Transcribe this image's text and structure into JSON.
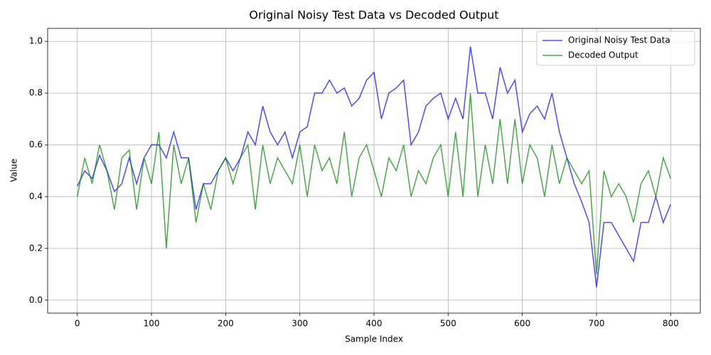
{
  "chart_data": {
    "type": "line",
    "title": "Original Noisy Test Data vs Decoded Output",
    "x_label": "Sample Index",
    "y_label": "Value",
    "x": [
      0,
      10,
      20,
      30,
      40,
      50,
      60,
      70,
      80,
      90,
      100,
      110,
      120,
      130,
      140,
      150,
      160,
      170,
      180,
      190,
      200,
      210,
      220,
      230,
      240,
      250,
      260,
      270,
      280,
      290,
      300,
      310,
      320,
      330,
      340,
      350,
      360,
      370,
      380,
      390,
      400,
      410,
      420,
      430,
      440,
      450,
      460,
      470,
      480,
      490,
      500,
      510,
      520,
      530,
      540,
      550,
      560,
      570,
      580,
      590,
      600,
      610,
      620,
      630,
      640,
      650,
      660,
      670,
      680,
      690,
      700,
      710,
      720,
      730,
      740,
      750,
      760,
      770,
      780,
      790,
      800
    ],
    "series": [
      {
        "name": "Original Noisy Test Data",
        "color": "#0000ff",
        "values": [
          0.44,
          0.5,
          0.47,
          0.56,
          0.5,
          0.42,
          0.45,
          0.55,
          0.45,
          0.55,
          0.6,
          0.6,
          0.55,
          0.65,
          0.55,
          0.55,
          0.35,
          0.45,
          0.45,
          0.5,
          0.55,
          0.5,
          0.55,
          0.65,
          0.6,
          0.75,
          0.65,
          0.6,
          0.65,
          0.55,
          0.65,
          0.67,
          0.8,
          0.8,
          0.85,
          0.8,
          0.82,
          0.75,
          0.78,
          0.85,
          0.88,
          0.7,
          0.8,
          0.82,
          0.85,
          0.6,
          0.65,
          0.75,
          0.78,
          0.8,
          0.7,
          0.78,
          0.7,
          0.98,
          0.8,
          0.8,
          0.7,
          0.9,
          0.8,
          0.85,
          0.65,
          0.72,
          0.75,
          0.7,
          0.8,
          0.65,
          0.55,
          0.45,
          0.38,
          0.3,
          0.05,
          0.3,
          0.3,
          0.25,
          0.2,
          0.15,
          0.3,
          0.3,
          0.4,
          0.3,
          0.37
        ]
      },
      {
        "name": "Decoded Output",
        "color": "#008000",
        "values": [
          0.4,
          0.55,
          0.45,
          0.6,
          0.5,
          0.35,
          0.55,
          0.58,
          0.35,
          0.55,
          0.45,
          0.65,
          0.2,
          0.6,
          0.45,
          0.55,
          0.3,
          0.45,
          0.35,
          0.5,
          0.55,
          0.45,
          0.55,
          0.6,
          0.35,
          0.6,
          0.45,
          0.55,
          0.5,
          0.45,
          0.6,
          0.4,
          0.6,
          0.5,
          0.55,
          0.45,
          0.65,
          0.4,
          0.55,
          0.6,
          0.5,
          0.4,
          0.55,
          0.5,
          0.6,
          0.4,
          0.5,
          0.45,
          0.55,
          0.6,
          0.4,
          0.65,
          0.4,
          0.8,
          0.4,
          0.6,
          0.45,
          0.7,
          0.45,
          0.7,
          0.45,
          0.6,
          0.55,
          0.4,
          0.6,
          0.45,
          0.55,
          0.5,
          0.45,
          0.5,
          0.1,
          0.5,
          0.4,
          0.45,
          0.4,
          0.3,
          0.45,
          0.5,
          0.4,
          0.55,
          0.47
        ]
      }
    ],
    "xlim": [
      -40,
      840
    ],
    "ylim": [
      -0.05,
      1.05
    ],
    "xticks": [
      0,
      100,
      200,
      300,
      400,
      500,
      600,
      700,
      800
    ],
    "yticks": [
      {
        "value": 0,
        "label": "0.0"
      },
      {
        "value": 0.2,
        "label": "0.2"
      },
      {
        "value": 0.4,
        "label": "0.4"
      },
      {
        "value": 0.6,
        "label": "0.6"
      },
      {
        "value": 0.8,
        "label": "0.8"
      },
      {
        "value": 1,
        "label": "1.0"
      }
    ],
    "grid": true,
    "legend": "upper right"
  }
}
